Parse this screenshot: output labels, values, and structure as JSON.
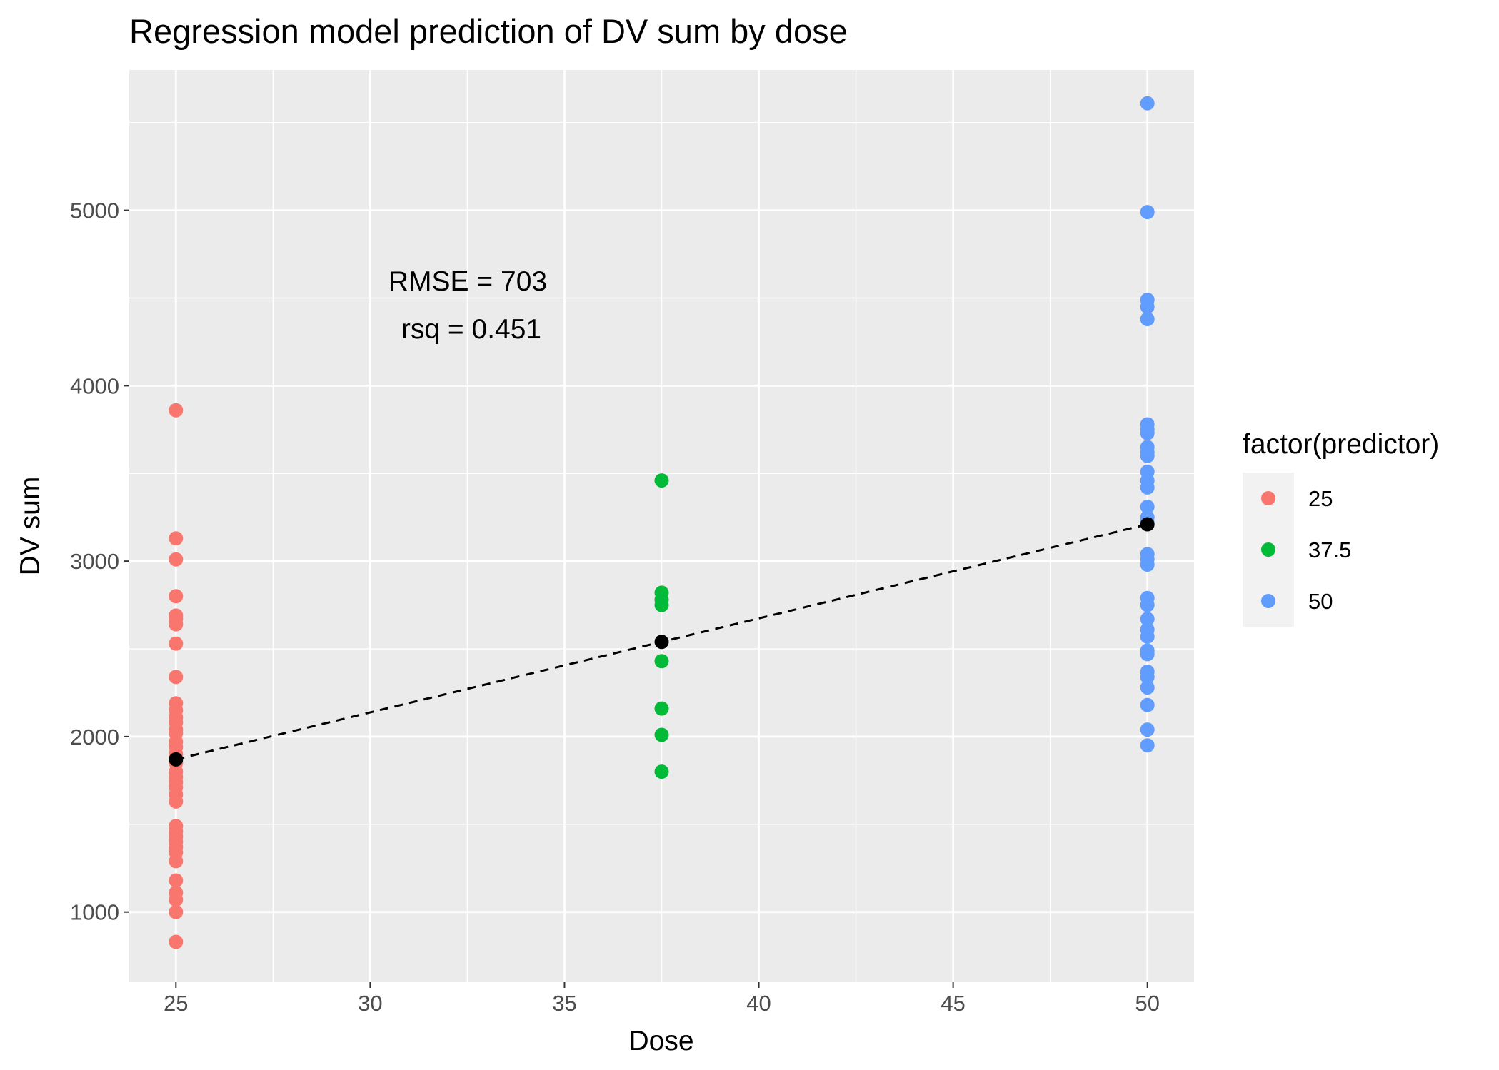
{
  "chart_data": {
    "type": "scatter",
    "title": "Regression model prediction of DV sum by dose",
    "xlabel": "Dose",
    "ylabel": "DV sum",
    "xlim": [
      23.8,
      51.2
    ],
    "ylim": [
      600,
      5800
    ],
    "x_ticks": [
      25,
      30,
      35,
      40,
      45,
      50
    ],
    "y_ticks": [
      1000,
      2000,
      3000,
      4000,
      5000
    ],
    "x_tick_labels": [
      "25",
      "30",
      "35",
      "40",
      "45",
      "50"
    ],
    "y_tick_labels": [
      "1000",
      "2000",
      "3000",
      "4000",
      "5000"
    ],
    "grid": true,
    "legend": {
      "title": "factor(predictor)",
      "position": "right",
      "entries": [
        {
          "label": "25",
          "color": "#F8766D"
        },
        {
          "label": "37.5",
          "color": "#00BA38"
        },
        {
          "label": "50",
          "color": "#619CFF"
        }
      ]
    },
    "series": [
      {
        "name": "25",
        "x": 25,
        "color": "#F8766D",
        "values": [
          3860,
          3130,
          3010,
          2800,
          2690,
          2670,
          2640,
          2530,
          2340,
          2190,
          2150,
          2110,
          2080,
          2040,
          2020,
          1970,
          1940,
          1900,
          1850,
          1800,
          1770,
          1740,
          1710,
          1670,
          1630,
          1490,
          1460,
          1430,
          1400,
          1370,
          1340,
          1290,
          1180,
          1110,
          1070,
          1000,
          830
        ]
      },
      {
        "name": "37.5",
        "x": 37.5,
        "color": "#00BA38",
        "values": [
          3460,
          2820,
          2780,
          2750,
          2430,
          2160,
          2010,
          1800
        ]
      },
      {
        "name": "50",
        "x": 50,
        "color": "#619CFF",
        "values": [
          5610,
          4990,
          4490,
          4450,
          4380,
          3780,
          3750,
          3730,
          3650,
          3620,
          3600,
          3510,
          3460,
          3420,
          3310,
          3250,
          3220,
          3040,
          3010,
          2980,
          2790,
          2750,
          2670,
          2610,
          2570,
          2490,
          2470,
          2370,
          2340,
          2280,
          2180,
          2040,
          1950
        ]
      }
    ],
    "predictions": {
      "color": "#000000",
      "points": [
        {
          "x": 25,
          "y": 1870
        },
        {
          "x": 37.5,
          "y": 2540
        },
        {
          "x": 50,
          "y": 3210
        }
      ]
    },
    "annotations": {
      "rmse_text": "RMSE = 703",
      "rsq_text": "rsq = 0.451"
    }
  }
}
